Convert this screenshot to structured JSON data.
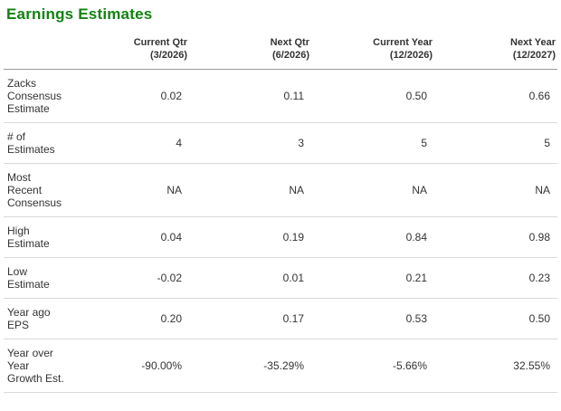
{
  "page": {
    "title": "Earnings Estimates"
  },
  "colors": {
    "title_green": "#128212",
    "text": "#333333",
    "header_rule": "#9a9a9a",
    "row_rule": "#d9d9d9"
  },
  "table": {
    "columns": [
      {
        "label": "Current Qtr",
        "period": "(3/2026)"
      },
      {
        "label": "Next Qtr",
        "period": "(6/2026)"
      },
      {
        "label": "Current Year",
        "period": "(12/2026)"
      },
      {
        "label": "Next Year",
        "period": "(12/2027)"
      }
    ],
    "rows": [
      {
        "label": "Zacks Consensus Estimate",
        "values": [
          "0.02",
          "0.11",
          "0.50",
          "0.66"
        ]
      },
      {
        "label": "# of Estimates",
        "values": [
          "4",
          "3",
          "5",
          "5"
        ]
      },
      {
        "label": "Most Recent Consensus",
        "values": [
          "NA",
          "NA",
          "NA",
          "NA"
        ]
      },
      {
        "label": "High Estimate",
        "values": [
          "0.04",
          "0.19",
          "0.84",
          "0.98"
        ]
      },
      {
        "label": "Low Estimate",
        "values": [
          "-0.02",
          "0.01",
          "0.21",
          "0.23"
        ]
      },
      {
        "label": "Year ago EPS",
        "values": [
          "0.20",
          "0.17",
          "0.53",
          "0.50"
        ]
      },
      {
        "label": "Year over Year Growth Est.",
        "values": [
          "-90.00%",
          "-35.29%",
          "-5.66%",
          "32.55%"
        ]
      }
    ]
  }
}
